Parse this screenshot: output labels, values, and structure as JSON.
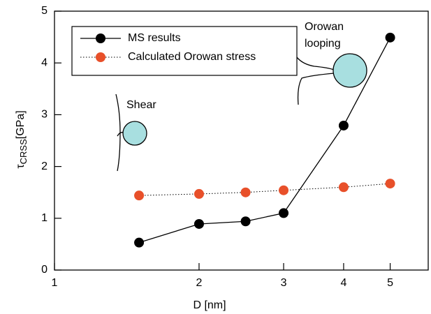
{
  "chart_data": {
    "type": "line",
    "xlabel": "D [nm]",
    "ylabel": {
      "symbol": "τ",
      "subscript": "CRSS",
      "unit": "[GPa]"
    },
    "xscale": "log",
    "xlim": [
      1,
      6
    ],
    "xticks": [
      1,
      2,
      3,
      4,
      5
    ],
    "ylim": [
      0,
      5
    ],
    "yticks": [
      0,
      1,
      2,
      3,
      4,
      5
    ],
    "legend": "upper left",
    "series": [
      {
        "name": "MS results",
        "color": "#000000",
        "linestyle": "solid",
        "x": [
          1.5,
          2,
          2.5,
          3,
          4,
          5
        ],
        "values": [
          0.53,
          0.89,
          0.94,
          1.1,
          2.79,
          4.49
        ]
      },
      {
        "name": "Calculated Orowan stress",
        "color": "#e8502a",
        "linestyle": "dotted",
        "x": [
          1.5,
          2,
          2.5,
          3,
          4,
          5
        ],
        "values": [
          1.44,
          1.47,
          1.5,
          1.54,
          1.6,
          1.67
        ]
      }
    ],
    "annotations": [
      "Shear",
      "Orowan",
      "looping"
    ]
  }
}
